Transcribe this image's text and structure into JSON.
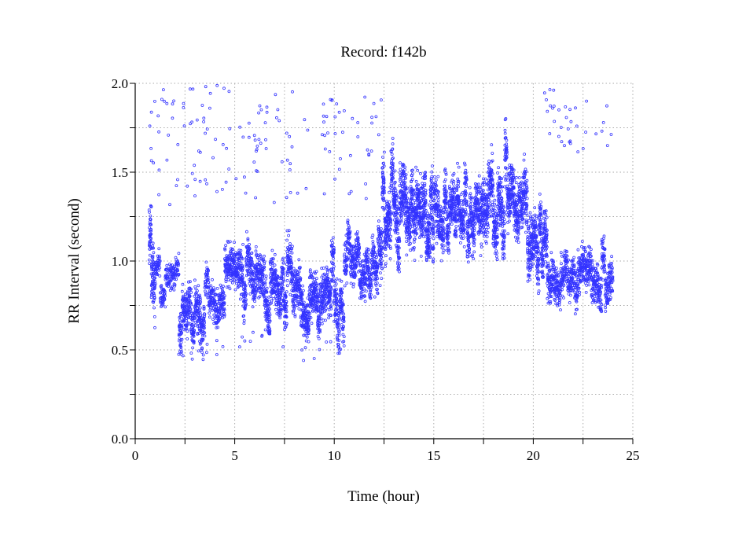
{
  "chart_data": {
    "type": "scatter",
    "title": "Record:  f142b",
    "xlabel": "Time (hour)",
    "ylabel": "RR Interval (second)",
    "xlim": [
      0,
      25
    ],
    "ylim": [
      0,
      2.0
    ],
    "xticks": [
      0,
      5,
      10,
      15,
      20,
      25
    ],
    "xtick_labels": [
      "0",
      "5",
      "10",
      "15",
      "20",
      "25"
    ],
    "yticks": [
      0,
      0.5,
      1.0,
      1.5,
      2.0
    ],
    "ytick_labels": [
      "0.0",
      "0.5",
      "1.0",
      "1.5",
      "2.0"
    ],
    "minor_x": 2.5,
    "minor_y": 0.25,
    "grid": true,
    "marker_color": "#3333ff",
    "series_summary": [
      {
        "start": 0.7,
        "end": 1.0,
        "mean": 0.95,
        "spread": 0.14
      },
      {
        "start": 1.0,
        "end": 2.2,
        "mean": 0.9,
        "spread": 0.06
      },
      {
        "start": 2.2,
        "end": 3.5,
        "mean": 0.74,
        "spread": 0.1
      },
      {
        "start": 3.5,
        "end": 4.5,
        "mean": 0.8,
        "spread": 0.08
      },
      {
        "start": 4.5,
        "end": 6.5,
        "mean": 0.9,
        "spread": 0.1
      },
      {
        "start": 6.5,
        "end": 10.5,
        "mean": 0.8,
        "spread": 0.11
      },
      {
        "start": 10.5,
        "end": 12.3,
        "mean": 1.0,
        "spread": 0.1
      },
      {
        "start": 12.3,
        "end": 15.0,
        "mean": 1.28,
        "spread": 0.14
      },
      {
        "start": 15.0,
        "end": 17.5,
        "mean": 1.28,
        "spread": 0.12
      },
      {
        "start": 17.5,
        "end": 19.7,
        "mean": 1.35,
        "spread": 0.13
      },
      {
        "start": 19.7,
        "end": 20.7,
        "mean": 1.1,
        "spread": 0.13
      },
      {
        "start": 20.7,
        "end": 24.0,
        "mean": 0.9,
        "spread": 0.09
      }
    ],
    "outlier_ranges": [
      {
        "start": 0.7,
        "end": 12.5,
        "min": 1.3,
        "max": 2.0,
        "count": 150
      },
      {
        "start": 20.5,
        "end": 24.0,
        "min": 1.6,
        "max": 1.97,
        "count": 35
      },
      {
        "start": 2.0,
        "end": 10.5,
        "min": 0.44,
        "max": 0.6,
        "count": 25
      }
    ]
  }
}
